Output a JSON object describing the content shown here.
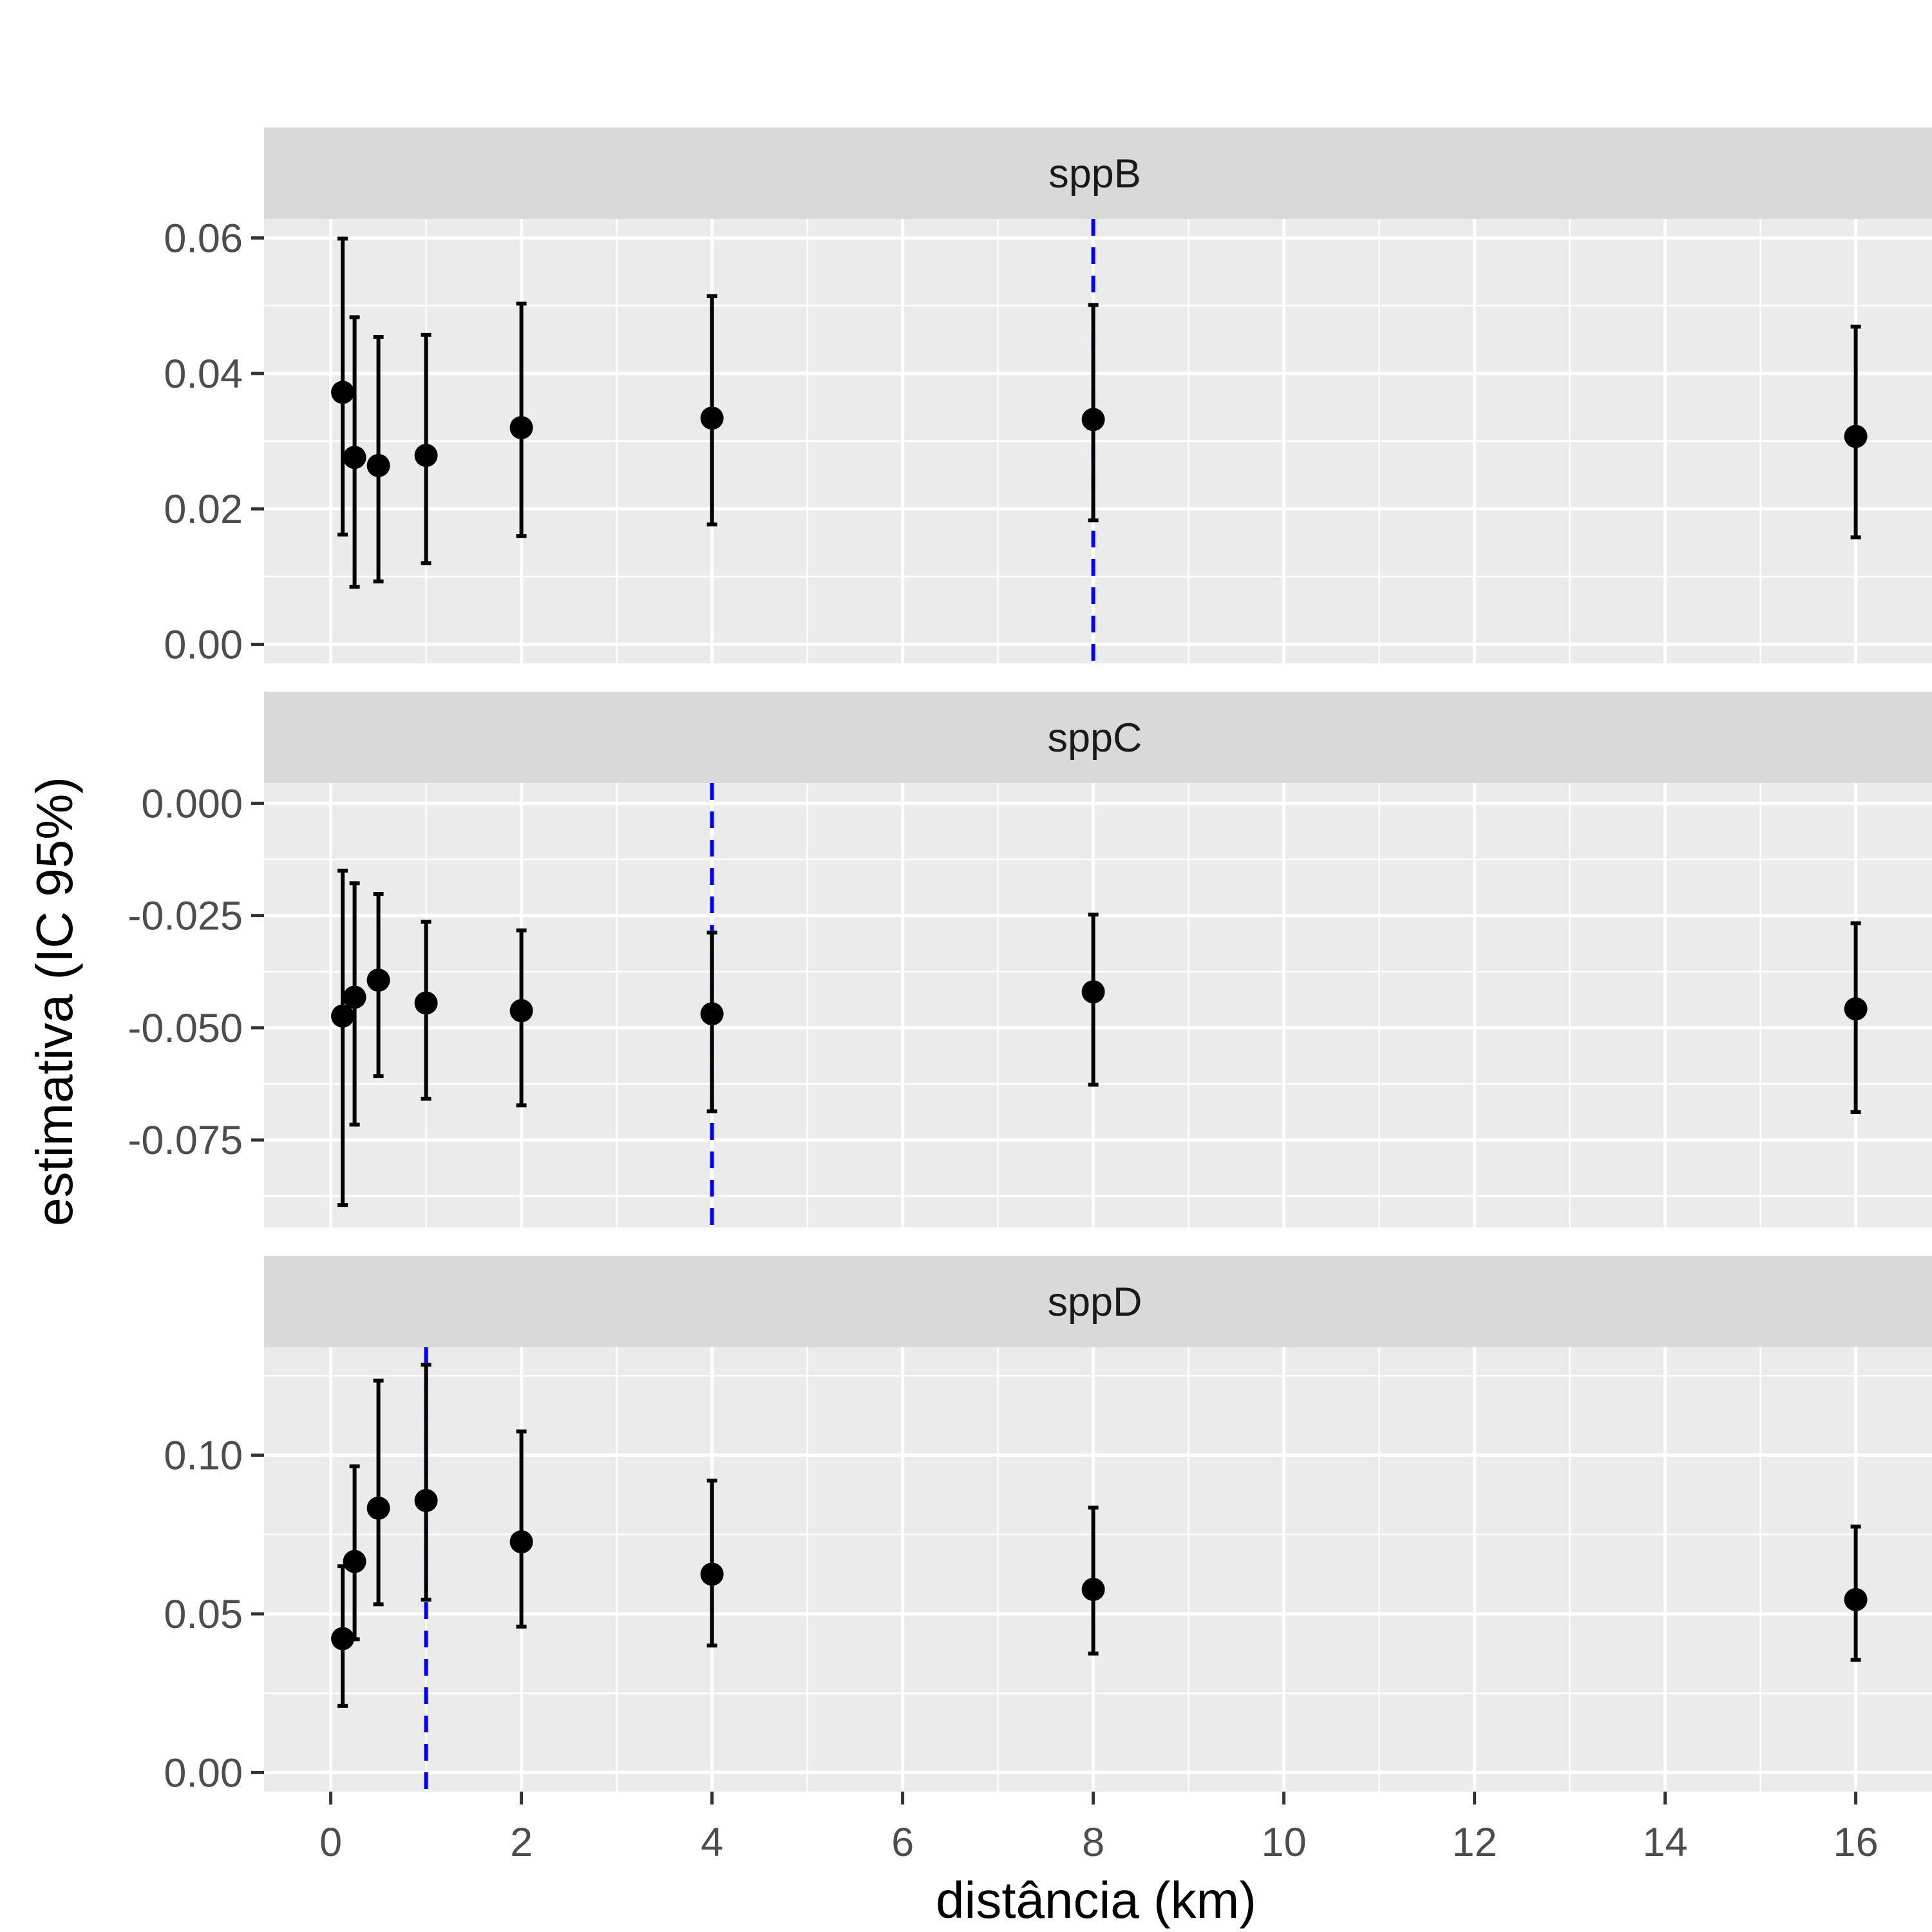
{
  "chart_data": {
    "type": "scatter",
    "subtype": "faceted point estimates with 95% CI error bars",
    "xlabel": "distância (km)",
    "ylabel": "estimativa (IC 95%)",
    "x_ticks": [
      "0",
      "2",
      "4",
      "6",
      "8",
      "10",
      "12",
      "14",
      "16"
    ],
    "xlim": [
      -0.7,
      16.8
    ],
    "x": [
      0.125,
      0.25,
      0.5,
      1,
      2,
      4,
      8,
      16
    ],
    "panels": [
      {
        "strip": "sppB",
        "ylim": [
          -0.0028,
          0.0628
        ],
        "y_ticks": [
          {
            "value": 0.06,
            "label": "0.06"
          },
          {
            "value": 0.04,
            "label": "0.04"
          },
          {
            "value": 0.02,
            "label": "0.02"
          },
          {
            "value": 0.0,
            "label": "0.00"
          }
        ],
        "estimate": [
          0.0372,
          0.0276,
          0.0264,
          0.0279,
          0.032,
          0.0334,
          0.0332,
          0.0307
        ],
        "lower": [
          0.0162,
          0.0085,
          0.0093,
          0.012,
          0.016,
          0.0177,
          0.0183,
          0.0158
        ],
        "upper": [
          0.0599,
          0.0483,
          0.0454,
          0.0457,
          0.0503,
          0.0514,
          0.0501,
          0.0469
        ],
        "best_distance": 8
      },
      {
        "strip": "sppC",
        "ylim": [
          -0.0945,
          0.0045
        ],
        "y_ticks": [
          {
            "value": 0.0,
            "label": "0.000"
          },
          {
            "value": -0.025,
            "label": "-0.025"
          },
          {
            "value": -0.05,
            "label": "-0.050"
          },
          {
            "value": -0.075,
            "label": "-0.075"
          }
        ],
        "estimate": [
          -0.0474,
          -0.0432,
          -0.0394,
          -0.0445,
          -0.0462,
          -0.0469,
          -0.042,
          -0.0458
        ],
        "lower": [
          -0.0895,
          -0.0716,
          -0.0608,
          -0.0658,
          -0.0673,
          -0.0686,
          -0.0627,
          -0.0688
        ],
        "upper": [
          -0.015,
          -0.0178,
          -0.0202,
          -0.0264,
          -0.0283,
          -0.0288,
          -0.0248,
          -0.0267
        ],
        "best_distance": 4
      },
      {
        "strip": "sppD",
        "ylim": [
          -0.006,
          0.134
        ],
        "y_ticks": [
          {
            "value": 0.1,
            "label": "0.10"
          },
          {
            "value": 0.05,
            "label": "0.05"
          },
          {
            "value": 0.0,
            "label": "0.00"
          }
        ],
        "estimate": [
          0.0422,
          0.0665,
          0.0833,
          0.0857,
          0.0727,
          0.0625,
          0.0577,
          0.0545
        ],
        "lower": [
          0.021,
          0.042,
          0.053,
          0.0545,
          0.046,
          0.04,
          0.0375,
          0.0355
        ],
        "upper": [
          0.065,
          0.0965,
          0.1235,
          0.1285,
          0.1075,
          0.092,
          0.0835,
          0.0775
        ],
        "best_distance": 1
      }
    ],
    "colors": {
      "points": "#000000",
      "reference_line": "#0000ff",
      "panel_background": "#ebebeb",
      "strip_background": "#d9d9d9",
      "grid": "#ffffff",
      "axis_text": "#4d4d4d",
      "title_text": "#000000",
      "strip_text": "#1a1a1a"
    }
  }
}
